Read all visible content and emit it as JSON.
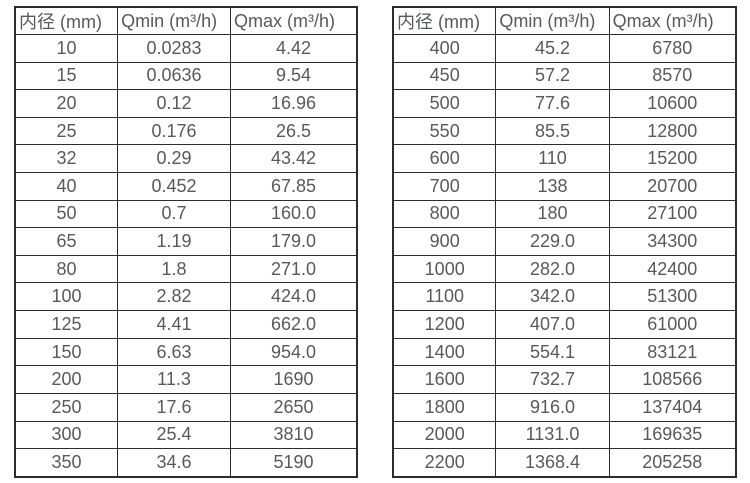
{
  "colors": {
    "background": "#ffffff",
    "border": "#2d2d2d",
    "text": "#58595b"
  },
  "tables": [
    {
      "headers": [
        "内径 (mm)",
        "Qmin (m³/h)",
        "Qmax (m³/h)"
      ],
      "rows": [
        [
          "10",
          "0.0283",
          "4.42"
        ],
        [
          "15",
          "0.0636",
          "9.54"
        ],
        [
          "20",
          "0.12",
          "16.96"
        ],
        [
          "25",
          "0.176",
          "26.5"
        ],
        [
          "32",
          "0.29",
          "43.42"
        ],
        [
          "40",
          "0.452",
          "67.85"
        ],
        [
          "50",
          "0.7",
          "160.0"
        ],
        [
          "65",
          "1.19",
          "179.0"
        ],
        [
          "80",
          "1.8",
          "271.0"
        ],
        [
          "100",
          "2.82",
          "424.0"
        ],
        [
          "125",
          "4.41",
          "662.0"
        ],
        [
          "150",
          "6.63",
          "954.0"
        ],
        [
          "200",
          "11.3",
          "1690"
        ],
        [
          "250",
          "17.6",
          "2650"
        ],
        [
          "300",
          "25.4",
          "3810"
        ],
        [
          "350",
          "34.6",
          "5190"
        ]
      ]
    },
    {
      "headers": [
        "内径 (mm)",
        "Qmin (m³/h)",
        "Qmax (m³/h)"
      ],
      "rows": [
        [
          "400",
          "45.2",
          "6780"
        ],
        [
          "450",
          "57.2",
          "8570"
        ],
        [
          "500",
          "77.6",
          "10600"
        ],
        [
          "550",
          "85.5",
          "12800"
        ],
        [
          "600",
          "110",
          "15200"
        ],
        [
          "700",
          "138",
          "20700"
        ],
        [
          "800",
          "180",
          "27100"
        ],
        [
          "900",
          "229.0",
          "34300"
        ],
        [
          "1000",
          "282.0",
          "42400"
        ],
        [
          "1100",
          "342.0",
          "51300"
        ],
        [
          "1200",
          "407.0",
          "61000"
        ],
        [
          "1400",
          "554.1",
          "83121"
        ],
        [
          "1600",
          "732.7",
          "108566"
        ],
        [
          "1800",
          "916.0",
          "137404"
        ],
        [
          "2000",
          "1131.0",
          "169635"
        ],
        [
          "2200",
          "1368.4",
          "205258"
        ]
      ]
    }
  ]
}
